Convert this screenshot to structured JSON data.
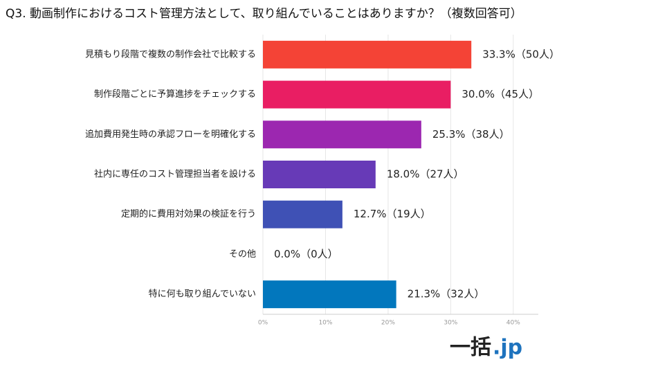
{
  "chart_data": {
    "type": "barh",
    "title": "Q3. 動画制作におけるコスト管理方法として、取り組んでいることはありますか？（複数回答可）",
    "categories": [
      "見積もり段階で複数の制作会社で比較する",
      "制作段階ごとに予算進捗をチェックする",
      "追加費用発生時の承認フローを明確化する",
      "社内に専任のコスト管理担当者を設ける",
      "定期的に費用対効果の検証を行う",
      "その他",
      "特に何も取り組んでいない"
    ],
    "values": [
      33.3,
      30.0,
      25.3,
      18.0,
      12.7,
      0.0,
      21.3
    ],
    "value_labels": [
      "33.3%（50人）",
      "30.0%（45人）",
      "25.3%（38人）",
      "18.0%（27人）",
      "12.7%（19人）",
      "0.0%（0人）",
      "21.3%（32人）"
    ],
    "colors": [
      "#f44336",
      "#e91e63",
      "#9c27b0",
      "#673ab7",
      "#3f51b5",
      "#2196f3",
      "#0277bd"
    ],
    "xlim": [
      0,
      44
    ],
    "xticks": [
      {
        "value": 0,
        "label": "0%"
      },
      {
        "value": 10,
        "label": "10%"
      },
      {
        "value": 20,
        "label": "20%"
      },
      {
        "value": 30,
        "label": "30%"
      },
      {
        "value": 40,
        "label": "40%"
      }
    ],
    "grid": true
  },
  "logo": {
    "main": "一括",
    "suffix": ".jp"
  }
}
